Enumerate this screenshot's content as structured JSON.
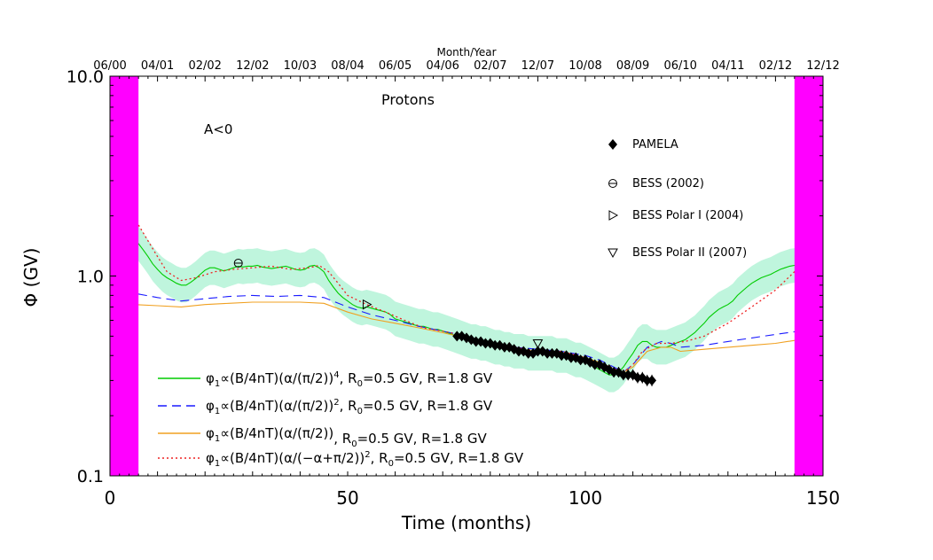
{
  "chart_data": {
    "type": "line",
    "title": "Protons",
    "annotation": "A<0",
    "xlabel": "Time (months)",
    "ylabel": "Φ (GV)",
    "xlim": [
      0,
      150
    ],
    "ylim": [
      0.1,
      10.0
    ],
    "yscale": "log",
    "grid": false,
    "x_ticks": [
      0,
      50,
      100,
      150
    ],
    "x_tick_labels": [
      "0",
      "50",
      "100",
      "150"
    ],
    "y_ticks": [
      0.1,
      1.0,
      10.0
    ],
    "y_tick_labels": [
      "0.1",
      "1.0",
      "10.0"
    ],
    "top_axis": {
      "label": "Month/Year",
      "tick_months": [
        0,
        10,
        20,
        30,
        40,
        50,
        60,
        70,
        80,
        90,
        100,
        110,
        120,
        130,
        140,
        150
      ],
      "tick_labels": [
        "06/00",
        "04/01",
        "02/02",
        "12/02",
        "10/03",
        "08/04",
        "06/05",
        "04/06",
        "02/07",
        "12/07",
        "10/08",
        "08/09",
        "06/10",
        "04/11",
        "02/12",
        "12/12"
      ]
    },
    "shaded_regions": [
      {
        "x": [
          0,
          6
        ],
        "color": "#ff00ff"
      },
      {
        "x": [
          144,
          150
        ],
        "color": "#ff00ff"
      }
    ],
    "uncertainty_band": {
      "color": "#bff5dd",
      "of_series": 0,
      "factor": 1.22
    },
    "series": [
      {
        "name": "φ₁∝(B/4nT)(α/(π/2))⁴,   R₀=0.5 GV,   R=1.8 GV",
        "legend_parts": [
          "φ",
          "1",
          "∝(B/4nT)(α/(π/2))",
          "4",
          ",   R",
          "0",
          "=0.5 GV,   R=1.8 GV"
        ],
        "color": "#00cc00",
        "dash": "solid",
        "x": [
          0,
          1,
          2,
          3,
          4,
          5,
          6,
          7,
          8,
          9,
          10,
          11,
          12,
          13,
          14,
          15,
          16,
          17,
          18,
          19,
          20,
          21,
          22,
          23,
          24,
          25,
          26,
          27,
          28,
          29,
          30,
          31,
          32,
          33,
          34,
          35,
          36,
          37,
          38,
          39,
          40,
          41,
          42,
          43,
          44,
          45,
          46,
          47,
          48,
          49,
          50,
          51,
          52,
          53,
          54,
          55,
          56,
          57,
          58,
          59,
          60,
          61,
          62,
          63,
          64,
          65,
          66,
          67,
          68,
          69,
          70,
          71,
          72,
          73,
          74,
          75,
          76,
          77,
          78,
          79,
          80,
          81,
          82,
          83,
          84,
          85,
          86,
          87,
          88,
          89,
          90,
          91,
          92,
          93,
          94,
          95,
          96,
          97,
          98,
          99,
          100,
          101,
          102,
          103,
          104,
          105,
          106,
          107,
          108,
          109,
          110,
          111,
          112,
          113,
          114,
          115,
          116,
          117,
          118,
          119,
          120,
          121,
          122,
          123,
          124,
          125,
          126,
          127,
          128,
          129,
          130,
          131,
          132,
          133,
          134,
          135,
          136,
          137,
          138,
          139,
          140,
          141,
          142,
          143,
          144,
          145,
          146,
          147,
          148,
          149,
          150
        ],
        "y": [
          1.65,
          1.62,
          1.6,
          1.57,
          1.55,
          1.5,
          1.45,
          1.35,
          1.25,
          1.15,
          1.08,
          1.02,
          0.98,
          0.95,
          0.92,
          0.9,
          0.9,
          0.93,
          0.97,
          1.02,
          1.07,
          1.1,
          1.1,
          1.08,
          1.06,
          1.08,
          1.1,
          1.12,
          1.11,
          1.12,
          1.12,
          1.13,
          1.11,
          1.1,
          1.09,
          1.1,
          1.11,
          1.12,
          1.1,
          1.08,
          1.07,
          1.08,
          1.12,
          1.13,
          1.1,
          1.05,
          0.95,
          0.88,
          0.82,
          0.78,
          0.75,
          0.72,
          0.7,
          0.69,
          0.7,
          0.69,
          0.68,
          0.67,
          0.66,
          0.64,
          0.61,
          0.6,
          0.59,
          0.58,
          0.57,
          0.56,
          0.56,
          0.55,
          0.54,
          0.54,
          0.53,
          0.52,
          0.51,
          0.5,
          0.49,
          0.48,
          0.47,
          0.47,
          0.46,
          0.46,
          0.45,
          0.44,
          0.44,
          0.43,
          0.43,
          0.42,
          0.42,
          0.42,
          0.41,
          0.41,
          0.41,
          0.41,
          0.41,
          0.41,
          0.4,
          0.4,
          0.4,
          0.39,
          0.38,
          0.38,
          0.37,
          0.36,
          0.35,
          0.34,
          0.33,
          0.32,
          0.32,
          0.33,
          0.35,
          0.38,
          0.41,
          0.45,
          0.47,
          0.47,
          0.45,
          0.44,
          0.44,
          0.44,
          0.45,
          0.46,
          0.47,
          0.48,
          0.5,
          0.52,
          0.55,
          0.58,
          0.62,
          0.65,
          0.68,
          0.7,
          0.72,
          0.75,
          0.8,
          0.84,
          0.88,
          0.92,
          0.95,
          0.98,
          1.0,
          1.02,
          1.05,
          1.08,
          1.1,
          1.12,
          1.13,
          1.14,
          1.15,
          1.16,
          1.17,
          1.18,
          1.2
        ]
      },
      {
        "name": "φ₁∝(B/4nT)(α/(π/2))²,   R₀=0.5 GV,   R=1.8 GV",
        "legend_parts": [
          "φ",
          "1",
          "∝(B/4nT)(α/(π/2))",
          "2",
          ",   R",
          "0",
          "=0.5 GV,   R=1.8 GV"
        ],
        "color": "#1a1aff",
        "dash": "10,6",
        "x": [
          0,
          5,
          10,
          15,
          20,
          25,
          30,
          35,
          40,
          45,
          50,
          55,
          60,
          65,
          70,
          75,
          80,
          85,
          90,
          95,
          100,
          103,
          106,
          108,
          110,
          113,
          116,
          118,
          120,
          125,
          130,
          135,
          140,
          145,
          150
        ],
        "y": [
          0.82,
          0.82,
          0.78,
          0.75,
          0.77,
          0.79,
          0.8,
          0.79,
          0.8,
          0.78,
          0.7,
          0.64,
          0.6,
          0.56,
          0.53,
          0.5,
          0.46,
          0.44,
          0.43,
          0.42,
          0.4,
          0.38,
          0.35,
          0.33,
          0.36,
          0.44,
          0.47,
          0.46,
          0.44,
          0.45,
          0.47,
          0.49,
          0.51,
          0.53,
          0.58
        ]
      },
      {
        "name": "φ₁∝(B/4nT)(α/(π/2)),   R₀=0.5 GV,   R=1.8 GV",
        "legend_parts": [
          "φ",
          "1",
          "∝(B/4nT)(α/(π/2))",
          "",
          ",   R",
          "0",
          "=0.5 GV,   R=1.8 GV"
        ],
        "color": "#f0a020",
        "dash": "solid",
        "x": [
          0,
          5,
          10,
          15,
          20,
          25,
          30,
          35,
          40,
          45,
          50,
          55,
          60,
          65,
          70,
          75,
          80,
          85,
          90,
          95,
          100,
          103,
          106,
          108,
          110,
          113,
          116,
          118,
          120,
          125,
          130,
          135,
          140,
          145,
          150
        ],
        "y": [
          0.72,
          0.72,
          0.71,
          0.7,
          0.72,
          0.73,
          0.74,
          0.74,
          0.74,
          0.73,
          0.66,
          0.61,
          0.58,
          0.55,
          0.52,
          0.49,
          0.46,
          0.43,
          0.42,
          0.41,
          0.39,
          0.37,
          0.34,
          0.33,
          0.35,
          0.42,
          0.44,
          0.44,
          0.42,
          0.43,
          0.44,
          0.45,
          0.46,
          0.48,
          0.53
        ]
      },
      {
        "name": "φ₁∝(B/4nT)(α/(−α+π/2))²,   R₀=0.5 GV,   R=1.8 GV",
        "legend_parts": [
          "φ",
          "1",
          "∝(B/4nT)(α/(−α+π/2))",
          "2",
          ",   R",
          "0",
          "=0.5 GV,   R=1.8 GV"
        ],
        "color": "#ee2222",
        "dash": "2,3",
        "x": [
          6,
          8,
          10,
          12,
          15,
          18,
          22,
          26,
          30,
          34,
          38,
          42,
          44,
          46,
          48,
          50,
          54,
          58,
          62,
          66,
          70,
          75,
          80,
          85,
          90,
          95,
          100,
          104,
          108,
          110,
          112,
          115,
          118,
          121,
          125,
          130,
          135,
          140,
          144,
          147,
          149
        ],
        "y": [
          1.8,
          1.5,
          1.25,
          1.05,
          0.95,
          0.98,
          1.05,
          1.08,
          1.1,
          1.12,
          1.08,
          1.1,
          1.13,
          1.05,
          0.92,
          0.8,
          0.72,
          0.66,
          0.6,
          0.55,
          0.53,
          0.5,
          0.46,
          0.44,
          0.42,
          0.42,
          0.39,
          0.36,
          0.33,
          0.36,
          0.42,
          0.46,
          0.46,
          0.47,
          0.5,
          0.58,
          0.7,
          0.85,
          1.05,
          1.2,
          1.32
        ]
      }
    ],
    "markers": [
      {
        "name": "PAMELA",
        "symbol": "filled-diamond",
        "color": "#000000",
        "x": [
          73,
          74,
          75,
          76,
          77,
          78,
          79,
          80,
          81,
          82,
          83,
          84,
          85,
          86,
          87,
          88,
          89,
          90,
          91,
          92,
          93,
          94,
          95,
          96,
          97,
          98,
          99,
          100,
          101,
          102,
          103,
          104,
          105,
          106,
          107,
          108,
          109,
          110,
          111,
          112,
          113,
          114
        ],
        "y": [
          0.5,
          0.5,
          0.49,
          0.48,
          0.47,
          0.47,
          0.46,
          0.46,
          0.45,
          0.45,
          0.44,
          0.44,
          0.43,
          0.42,
          0.42,
          0.41,
          0.41,
          0.42,
          0.42,
          0.41,
          0.41,
          0.41,
          0.4,
          0.4,
          0.39,
          0.39,
          0.38,
          0.38,
          0.37,
          0.36,
          0.36,
          0.35,
          0.34,
          0.33,
          0.33,
          0.32,
          0.32,
          0.32,
          0.31,
          0.31,
          0.3,
          0.3
        ],
        "error_bar_factor": 0.035
      },
      {
        "name": "BESS (2002)",
        "symbol": "circle-minus",
        "color": "#000000",
        "x": [
          27
        ],
        "y": [
          1.16
        ]
      },
      {
        "name": "BESS Polar I (2004)",
        "symbol": "triangle-right",
        "color": "#000000",
        "x": [
          54
        ],
        "y": [
          0.72
        ]
      },
      {
        "name": "BESS Polar II (2007)",
        "symbol": "triangle-down",
        "color": "#000000",
        "x": [
          90
        ],
        "y": [
          0.46
        ]
      }
    ]
  }
}
